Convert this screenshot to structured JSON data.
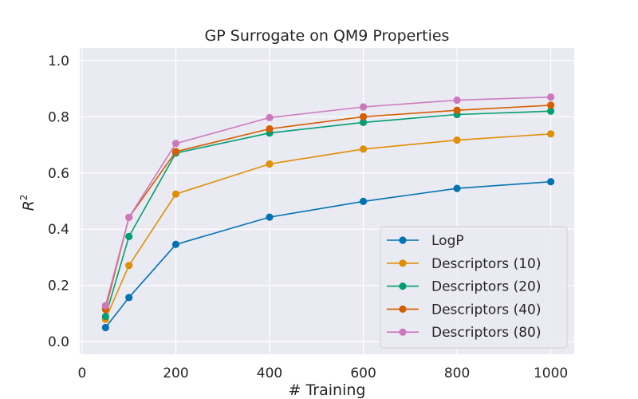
{
  "chart_data": {
    "type": "line",
    "title": "GP Surrogate on QM9 Properties",
    "xlabel": "# Training",
    "ylabel": "R",
    "ylabel_sup": "2",
    "xlim": [
      -5,
      1050
    ],
    "ylim": [
      -0.045,
      1.045
    ],
    "x_ticks": [
      0,
      200,
      400,
      600,
      800,
      1000
    ],
    "y_ticks": [
      0.0,
      0.2,
      0.4,
      0.6,
      0.8,
      1.0
    ],
    "x_tick_labels": [
      "0",
      "200",
      "400",
      "600",
      "800",
      "1000"
    ],
    "y_tick_labels": [
      "0.0",
      "0.2",
      "0.4",
      "0.6",
      "0.8",
      "1.0"
    ],
    "x": [
      50,
      100,
      200,
      400,
      600,
      800,
      1000
    ],
    "grid": true,
    "legend_position": "bottom-right",
    "series": [
      {
        "name": "LogP",
        "color": "#0173b2",
        "values": [
          0.05,
          0.157,
          0.346,
          0.443,
          0.499,
          0.545,
          0.569
        ]
      },
      {
        "name": "Descriptors (10)",
        "color": "#de8f05",
        "values": [
          0.08,
          0.271,
          0.525,
          0.632,
          0.685,
          0.717,
          0.739
        ]
      },
      {
        "name": "Descriptors (20)",
        "color": "#029e73",
        "values": [
          0.09,
          0.374,
          0.671,
          0.742,
          0.78,
          0.808,
          0.82
        ]
      },
      {
        "name": "Descriptors (40)",
        "color": "#d55e00",
        "values": [
          0.115,
          0.442,
          0.676,
          0.757,
          0.8,
          0.823,
          0.841
        ]
      },
      {
        "name": "Descriptors (80)",
        "color": "#cc78bc",
        "values": [
          0.128,
          0.442,
          0.705,
          0.797,
          0.835,
          0.859,
          0.87
        ]
      }
    ]
  }
}
